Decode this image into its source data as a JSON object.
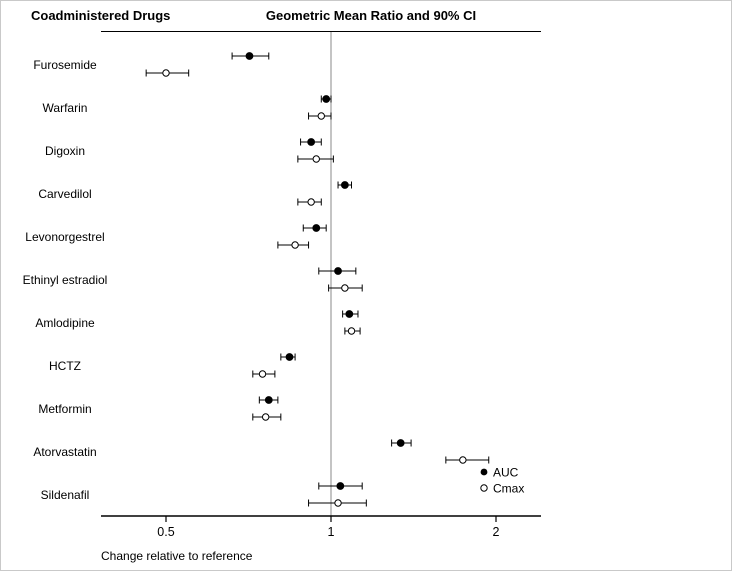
{
  "header": {
    "left_title": "Coadministered Drugs",
    "plot_title": "Geometric Mean Ratio and 90% CI"
  },
  "axis": {
    "label": "Change relative to reference",
    "scale": "log",
    "ticks": [
      0.5,
      1,
      2
    ],
    "tick_labels": [
      "0.5",
      "1",
      "2"
    ],
    "reference_value": 1
  },
  "legend": {
    "auc_label": "AUC",
    "cmax_label": "Cmax"
  },
  "colors": {
    "point": "#000000",
    "axis": "#000000",
    "reference_line": "#8a8a8a",
    "ci_bar": "#000000"
  },
  "chart_data": {
    "type": "scatter",
    "subtype": "forest-plot",
    "title": "Geometric Mean Ratio and 90% CI",
    "xlabel": "Change relative to reference",
    "x_scale": "log",
    "x_ticks": [
      0.5,
      1,
      2
    ],
    "xlim": [
      0.4,
      2.4
    ],
    "reference_line_x": 1,
    "legend_position": "lower right inside plot",
    "grid": false,
    "categories": [
      "Furosemide",
      "Warfarin",
      "Digoxin",
      "Carvedilol",
      "Levonorgestrel",
      "Ethinyl estradiol",
      "Amlodipine",
      "HCTZ",
      "Metformin",
      "Atorvastatin",
      "Sildenafil"
    ],
    "series": [
      {
        "name": "AUC",
        "marker": "filled-circle",
        "values": [
          0.71,
          0.98,
          0.92,
          1.06,
          0.94,
          1.03,
          1.08,
          0.84,
          0.77,
          1.34,
          1.04
        ],
        "ci_low": [
          0.66,
          0.96,
          0.88,
          1.03,
          0.89,
          0.95,
          1.05,
          0.81,
          0.74,
          1.29,
          0.95
        ],
        "ci_high": [
          0.77,
          1.0,
          0.96,
          1.09,
          0.98,
          1.11,
          1.12,
          0.86,
          0.8,
          1.4,
          1.14
        ]
      },
      {
        "name": "Cmax",
        "marker": "open-circle",
        "values": [
          0.5,
          0.96,
          0.94,
          0.92,
          0.86,
          1.06,
          1.09,
          0.75,
          0.76,
          1.74,
          1.03
        ],
        "ci_low": [
          0.46,
          0.91,
          0.87,
          0.87,
          0.8,
          0.99,
          1.06,
          0.72,
          0.72,
          1.62,
          0.91
        ],
        "ci_high": [
          0.55,
          1.0,
          1.01,
          0.96,
          0.91,
          1.14,
          1.13,
          0.79,
          0.81,
          1.94,
          1.16
        ]
      }
    ],
    "ci_level": "90% CI"
  }
}
